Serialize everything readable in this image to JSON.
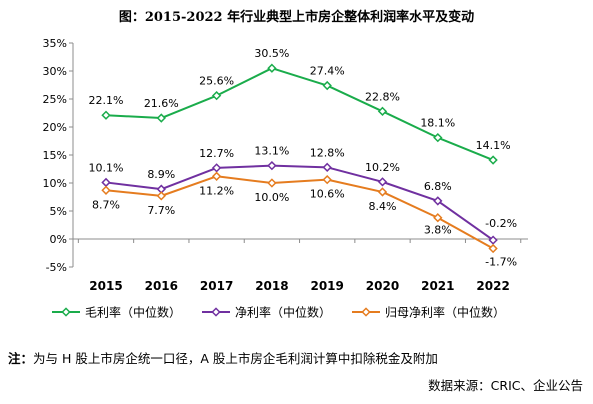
{
  "title": "图：2015-2022 年行业典型上市房企整体利润率水平及变动",
  "note_prefix": "注：",
  "note_text": "为与 H 股上市房企统一口径，A 股上市房企毛利润计算中扣除税金及附加",
  "source": "数据来源：CRIC、企业公告",
  "chart_data": {
    "type": "line",
    "title": "",
    "xlabel": "",
    "ylabel": "",
    "categories": [
      "2015",
      "2016",
      "2017",
      "2018",
      "2019",
      "2020",
      "2021",
      "2022"
    ],
    "ylim": [
      -5,
      35
    ],
    "yticks": [
      -5,
      0,
      5,
      10,
      15,
      20,
      25,
      30,
      35
    ],
    "ytick_labels": [
      "-5%",
      "0%",
      "5%",
      "10%",
      "15%",
      "20%",
      "25%",
      "30%",
      "35%"
    ],
    "grid": false,
    "legend_position": "bottom",
    "series": [
      {
        "name": "毛利率（中位数）",
        "color": "#1aac4b",
        "values": [
          22.1,
          21.6,
          25.6,
          30.5,
          27.4,
          22.8,
          18.1,
          14.1
        ],
        "labels": [
          "22.1%",
          "21.6%",
          "25.6%",
          "30.5%",
          "27.4%",
          "22.8%",
          "18.1%",
          "14.1%"
        ]
      },
      {
        "name": "净利率（中位数）",
        "color": "#7030a0",
        "values": [
          10.1,
          8.9,
          12.7,
          13.1,
          12.8,
          10.2,
          6.8,
          -0.2
        ],
        "labels": [
          "10.1%",
          "8.9%",
          "12.7%",
          "13.1%",
          "12.8%",
          "10.2%",
          "6.8%",
          "-0.2%"
        ]
      },
      {
        "name": "归母净利率（中位数）",
        "color": "#e57c1f",
        "values": [
          8.7,
          7.7,
          11.2,
          10.0,
          10.6,
          8.4,
          3.8,
          -1.7
        ],
        "labels": [
          "8.7%",
          "7.7%",
          "11.2%",
          "10.0%",
          "10.6%",
          "8.4%",
          "3.8%",
          "-1.7%"
        ]
      }
    ]
  }
}
